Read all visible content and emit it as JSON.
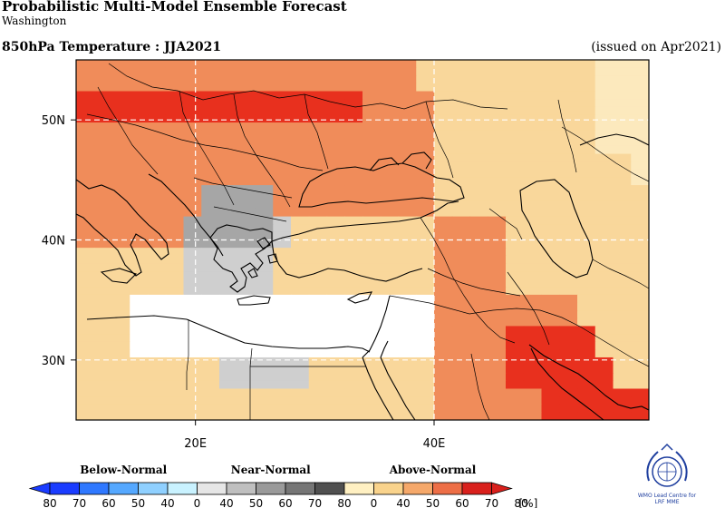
{
  "header": {
    "title": "Probabilistic Multi-Model Ensemble Forecast",
    "subtitle": "Washington",
    "variable": "850hPa Temperature : JJA2021",
    "issued": "(issued on Apr2021)"
  },
  "map": {
    "lon_range": [
      10,
      58
    ],
    "lat_range": [
      25,
      55
    ],
    "grid_lon": [
      20,
      40
    ],
    "grid_lat": [
      30,
      40,
      50
    ],
    "lon_labels": [
      "20E",
      "40E"
    ],
    "lat_labels": [
      "30N",
      "40N",
      "50N"
    ],
    "probability_grid_rows_north_to_south": [
      "AAAAAAAAAAAAAAAAAAAbbbbbbbbbbccc",
      "AAAAAAAAAAAAAAAAAAAbbbbbbbbbbccc",
      "AAAAAAAAAAAAAAAAAAAbbbbbbbbbbccc",
      "AAAAAAAAAAAAAAAAAAAbbbbbbbbbbccc",
      "EEEEEEEEEEEEEEEEAAAAbbbbbbbbbccc",
      "EEEEEEEEEEEEEEEEAAAAbbbbbbbbbccc",
      "EEEEEEEEEEEEEEEEAAAAbbbbbbbbbccc",
      "EEEEEEEEEEEEEEEEAAAAbbbbbbbbbccc",
      "AAAAAAAAAAAAAAAAAAAAbbbbbbbbbccc",
      "AAAAAAAAAAAAAAAAAAAAbbbbbbbbbccc",
      "AAAAAAAAAAAAAAAAAAAAbbbbbbbbbccc",
      "AAAAAAAAAAAAAAAAAAAAbbbbbbbbbccc",
      "AAAAAAAAAAAAAAAAAAAAbbbbbbbbbbbc",
      "AAAAAAAAAAAAAAAAAAAAbbbbbbbbbbbc",
      "AAAAAAAAAAAAAAAAAAAAbbbbbbbbbbbc",
      "AAAAAAAAAAAAAAAAAAAAbbbbbbbbbbbc",
      "AAAAAAAmmmmAAAAAAAAAbbbbbbbbbbbb",
      "AAAAAAAmmmmAAAAAAAAAbbbbbbbbbbbb",
      "AAAAAAAmmmmAAAAAAAAAbbbbbbbbbbbb",
      "AAAAAAAmmmmAAAAAAAAAbbbbbbbbbbbb",
      "AAAAAAmmmmmnbbbbbbbbAAAAbbbbbbbb",
      "AAAAAAmmmmmnbbbbbbbbAAAAbbbbbbbb",
      "AAAAAAmmmmmnbbbbbbbbAAAAbbbbbbbb",
      "AAAAAAmmmmmnbbbbbbbbAAAAbbbbbbbb",
      "bbbbbbnnnnnbbbbbbbbbAAAAbbbbbbbb",
      "bbbbbbnnnnnbbbbbbbbbAAAAbbbbbbbb",
      "bbbbbbnnnnnbbbbbbbbbAAAAbbbbbbbb",
      "bbbbbbnnnnnbbbbbbbbbAAAAbbbbbbbb",
      "bbbbbbnnnnnbbbbbbbbbAAAAbbbbbbbb",
      "bbbbbbnnnnnbbbbbbbbbAAAAbbbbbbbb",
      "bbbwwwwwwwwwwwwwwwwwAAAAAAAAbbbb",
      "bbbwwwwwwwwwwwwwwwwwAAAAAAAAbbbb",
      "bbbwwwwwwwwwwwwwwwwwAAAAAAAAbbbb",
      "bbbwwwwwwwwwwwwwwwwwAAAAAAAAbbbb",
      "bbbwwwwwwwwwwwwwwwwwAAAAEEEEEbbb",
      "bbbwwwwwwwwwwwwwwwwwAAAAEEEEEbbb",
      "bbbwwwwwwwwwwwwwwwwwAAAAEEEEEbbb",
      "bbbwwwwwwwwwwwwwwwwwAAAAEEEEEbbb",
      "bbbbbbbbnnnnnbbbbbbbAAAAEEEEEEbb",
      "bbbbbbbbnnnnnbbbbbbbAAAAEEEEEEbb",
      "bbbbbbbbnnnnnbbbbbbbAAAAEEEEEEbb",
      "bbbbbbbbnnnnnbbbbbbbAAAAEEEEEEbb",
      "bbbbbbbbbbbbbbbbbbbbAAAAAAEEEEEE",
      "bbbbbbbbbbbbbbbbbbbbAAAAAAEEEEEE",
      "bbbbbbbbbbbbbbbbbbbbAAAAAAEEEEEE",
      "bbbbbbbbbbbbbbbbbbbbAAAAAAEEEEEE"
    ],
    "probability_colors": {
      "c": "#fce9bd",
      "b": "#f9d79b",
      "A": "#f08c5a",
      "E": "#e8301e",
      "w": "#ffffff",
      "m": "#a6a6a6",
      "n": "#cfcfcf"
    }
  },
  "legend": {
    "below_label": "Below-Normal",
    "near_label": "Near-Normal",
    "above_label": "Above-Normal",
    "unit": "[%]",
    "below_colors": [
      "#1a3cff",
      "#2f78ff",
      "#55a8ff",
      "#8fd0ff",
      "#c9f2ff"
    ],
    "near_colors": [
      "#e6e6e6",
      "#bfbfbf",
      "#9a9a9a",
      "#767676",
      "#505050"
    ],
    "above_colors": [
      "#fff0c2",
      "#f9d38c",
      "#f5a86a",
      "#ed6e46",
      "#d9201c"
    ],
    "ticks": [
      "80",
      "70",
      "60",
      "50",
      "40",
      "0",
      "40",
      "50",
      "60",
      "70",
      "80",
      "0",
      "40",
      "50",
      "60",
      "70",
      "80"
    ]
  },
  "logo": {
    "caption_line1": "WMO Lead Centre for",
    "caption_line2": "LRF MME"
  }
}
